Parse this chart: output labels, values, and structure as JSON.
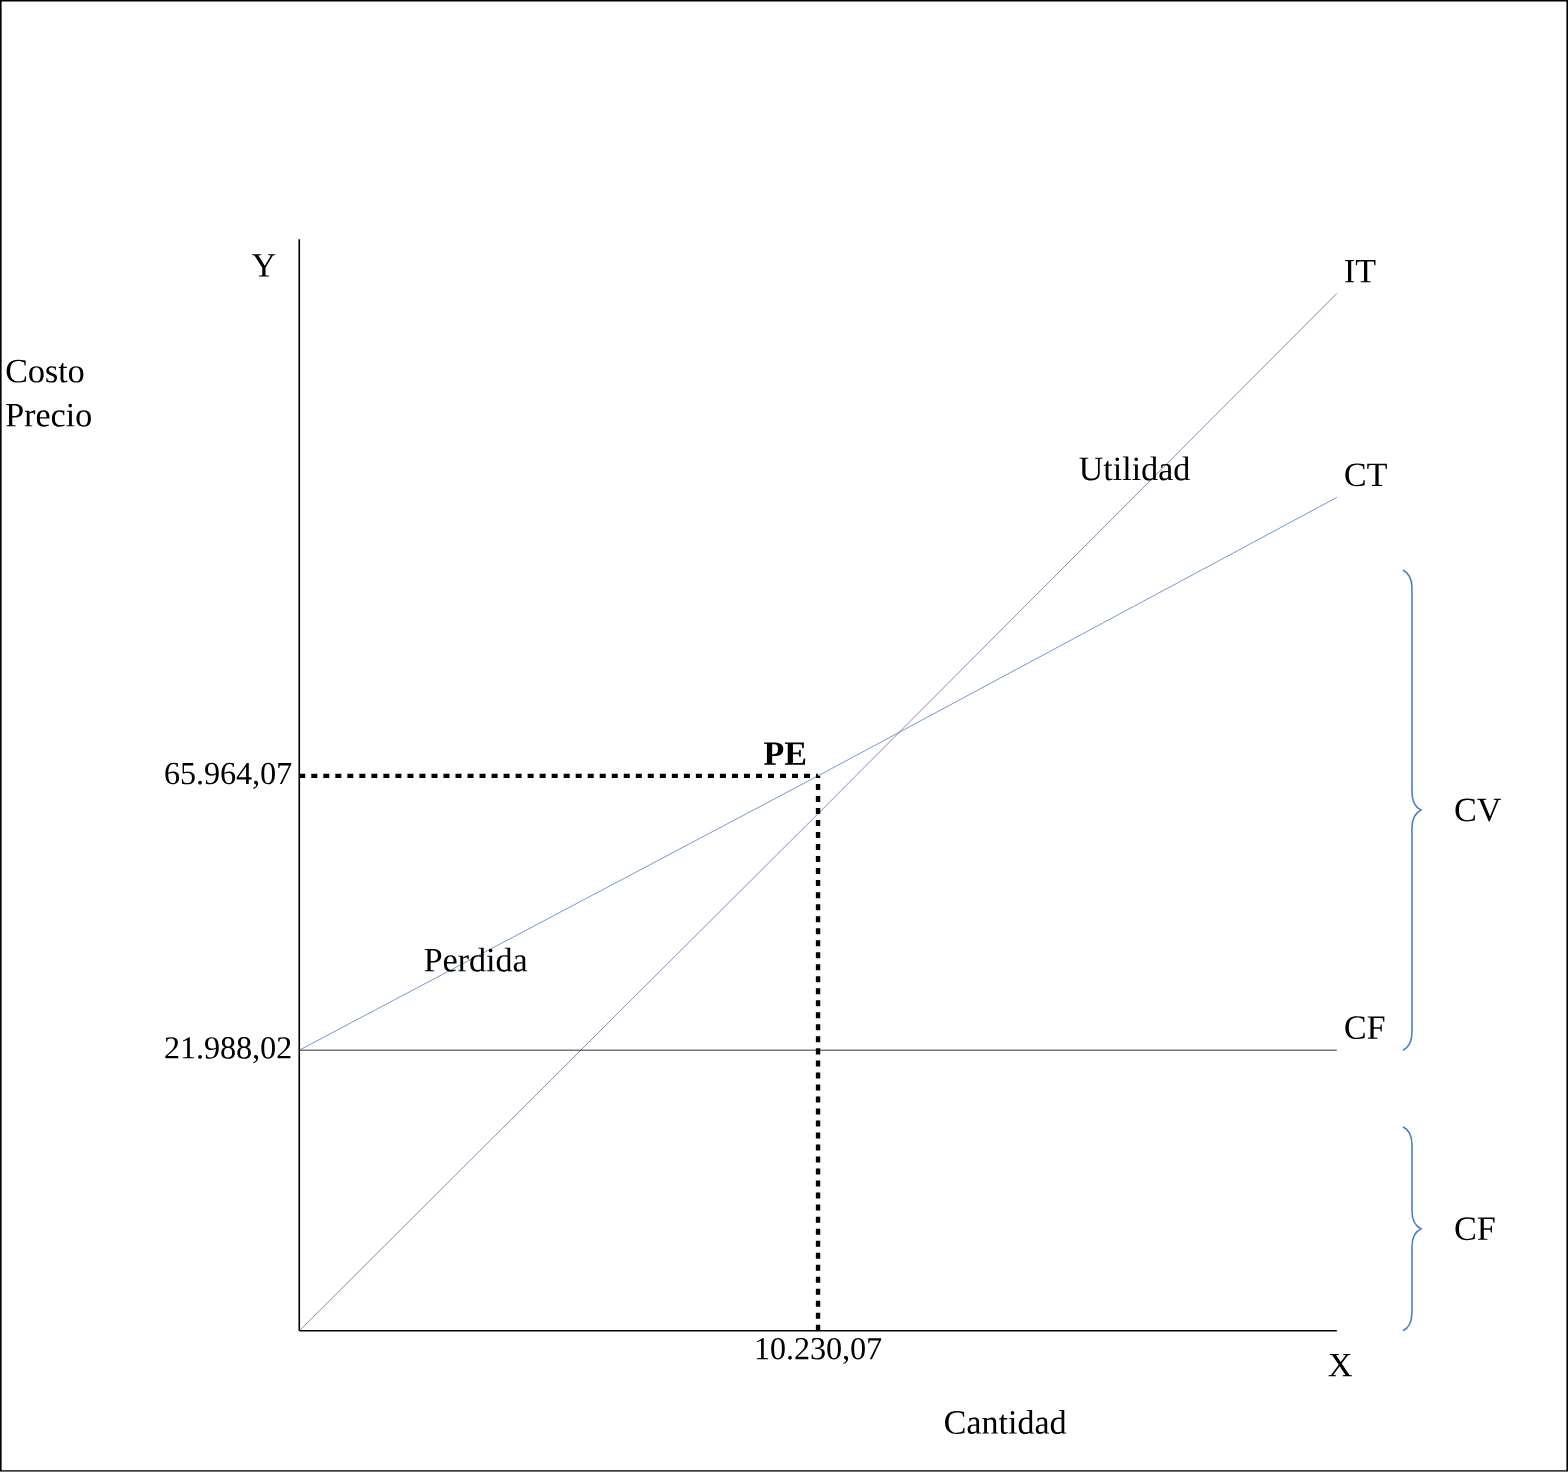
{
  "chart_data": {
    "type": "line",
    "xlabel": "Cantidad",
    "ylabel": "Costo Precio",
    "categories": [
      null,
      "10.230,07",
      null
    ],
    "ylim": [
      -23000,
      152000
    ],
    "yticks": [
      {
        "value": 21988.02,
        "label": "21.988,02"
      },
      {
        "value": 65964.07,
        "label": "65.964,07"
      }
    ],
    "series": [
      {
        "name": "IT",
        "color": "#8064a2",
        "values": [
          -23000,
          59900,
          143300
        ]
      },
      {
        "name": "CT",
        "color": "#4f81bd",
        "values": [
          21988.02,
          65964.07,
          110600
        ]
      },
      {
        "name": "CF",
        "color": "#000000",
        "values": [
          21988.02,
          21988.02,
          21988.02
        ]
      }
    ],
    "ref_lines": [
      {
        "axis": "y",
        "value": 65964.07,
        "line_style": "dashed",
        "color": "#000000"
      },
      {
        "axis": "x",
        "value": "10.230,07",
        "line_style": "dashed",
        "color": "#000000"
      }
    ],
    "annotations": [
      {
        "text": "PE",
        "x": "10.230,07",
        "y": 65964.07
      },
      "Utilidad",
      "Perdida",
      "Y",
      "X",
      "CV",
      "CF"
    ]
  }
}
